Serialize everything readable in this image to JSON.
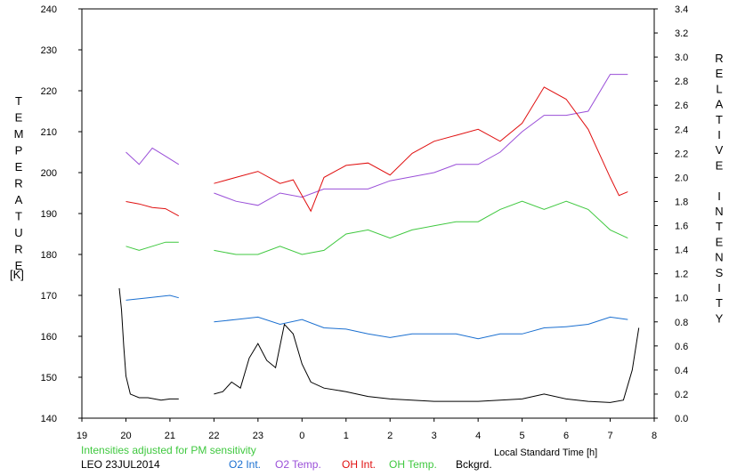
{
  "chart_data": {
    "type": "line",
    "left_axis_label": "TEMPERATURE",
    "left_axis_unit": "[K]",
    "right_axis_label": "RELATIVE INTENSITY",
    "x_axis_label": "Local Standard Time [h]",
    "note": "Intensities adjusted for PM sensitivity",
    "station_date": "LEO 23JUL2014",
    "x_ticks": [
      "19",
      "20",
      "21",
      "22",
      "23",
      "0",
      "1",
      "2",
      "3",
      "4",
      "5",
      "6",
      "7",
      "8"
    ],
    "x_range": [
      19,
      32
    ],
    "y_left_range": [
      140,
      240
    ],
    "y_left_ticks": [
      "140",
      "150",
      "160",
      "170",
      "180",
      "190",
      "200",
      "210",
      "220",
      "230",
      "240"
    ],
    "y_right_range": [
      0.0,
      3.4
    ],
    "y_right_ticks": [
      "0.0",
      "0.2",
      "0.4",
      "0.6",
      "0.8",
      "1.0",
      "1.2",
      "1.4",
      "1.6",
      "1.8",
      "2.0",
      "2.2",
      "2.4",
      "2.6",
      "2.8",
      "3.0",
      "3.2",
      "3.4"
    ],
    "grid": false,
    "legend_position": "bottom",
    "series": [
      {
        "name": "O2 Int.",
        "axis": "right",
        "color": "#1a6fd0",
        "segments": [
          {
            "x": [
              20.0,
              20.5,
              21.0,
              21.2
            ],
            "y": [
              0.98,
              1.0,
              1.02,
              1.0
            ]
          },
          {
            "x": [
              22.0,
              22.5,
              23.0,
              23.5,
              24.0,
              24.5,
              25.0,
              25.5,
              26.0,
              26.5,
              27.0,
              27.5,
              28.0,
              28.5,
              29.0,
              29.5,
              30.0,
              30.5,
              31.0,
              31.4
            ],
            "y": [
              0.8,
              0.82,
              0.84,
              0.78,
              0.82,
              0.75,
              0.74,
              0.7,
              0.67,
              0.7,
              0.7,
              0.7,
              0.66,
              0.7,
              0.7,
              0.75,
              0.76,
              0.78,
              0.84,
              0.82
            ]
          }
        ]
      },
      {
        "name": "O2 Temp.",
        "axis": "left",
        "color": "#9a4fd8",
        "segments": [
          {
            "x": [
              20.0,
              20.3,
              20.6,
              20.9,
              21.2
            ],
            "y": [
              205,
              202,
              206,
              204,
              202
            ]
          },
          {
            "x": [
              22.0,
              22.5,
              23.0,
              23.5,
              24.0,
              24.5,
              25.0,
              25.5,
              26.0,
              26.5,
              27.0,
              27.5,
              28.0,
              28.5,
              29.0,
              29.5,
              30.0,
              30.5,
              31.0,
              31.4
            ],
            "y": [
              195,
              193,
              192,
              195,
              194,
              196,
              196,
              196,
              198,
              199,
              200,
              202,
              202,
              205,
              210,
              214,
              214,
              215,
              224,
              224
            ]
          }
        ]
      },
      {
        "name": "OH Int.",
        "axis": "right",
        "color": "#e01010",
        "segments": [
          {
            "x": [
              20.0,
              20.3,
              20.6,
              20.9,
              21.2
            ],
            "y": [
              1.8,
              1.78,
              1.75,
              1.74,
              1.68
            ]
          },
          {
            "x": [
              22.0,
              22.5,
              23.0,
              23.5,
              23.8,
              24.0,
              24.2,
              24.5,
              25.0,
              25.5,
              26.0,
              26.5,
              27.0,
              27.5,
              28.0,
              28.5,
              29.0,
              29.5,
              30.0,
              30.5,
              31.0,
              31.2,
              31.4
            ],
            "y": [
              1.95,
              2.0,
              2.05,
              1.95,
              1.98,
              1.85,
              1.72,
              2.0,
              2.1,
              2.12,
              2.02,
              2.2,
              2.3,
              2.35,
              2.4,
              2.3,
              2.45,
              2.75,
              2.65,
              2.4,
              2.0,
              1.85,
              1.88
            ]
          }
        ]
      },
      {
        "name": "OH Temp.",
        "axis": "left",
        "color": "#3fc83f",
        "segments": [
          {
            "x": [
              20.0,
              20.3,
              20.6,
              20.9,
              21.2
            ],
            "y": [
              182,
              181,
              182,
              183,
              183
            ]
          },
          {
            "x": [
              22.0,
              22.5,
              23.0,
              23.5,
              24.0,
              24.5,
              25.0,
              25.5,
              26.0,
              26.5,
              27.0,
              27.5,
              28.0,
              28.5,
              29.0,
              29.5,
              30.0,
              30.5,
              31.0,
              31.4
            ],
            "y": [
              181,
              180,
              180,
              182,
              180,
              181,
              185,
              186,
              184,
              186,
              187,
              188,
              188,
              191,
              193,
              191,
              193,
              191,
              186,
              184
            ]
          }
        ]
      },
      {
        "name": "Bckgrd.",
        "axis": "right",
        "color": "#000000",
        "segments": [
          {
            "x": [
              19.85,
              19.9,
              19.95,
              20.0,
              20.1,
              20.3,
              20.5,
              20.8,
              21.0,
              21.2
            ],
            "y": [
              1.08,
              0.9,
              0.6,
              0.35,
              0.2,
              0.17,
              0.17,
              0.15,
              0.16,
              0.16
            ]
          },
          {
            "x": [
              22.0,
              22.2,
              22.4,
              22.6,
              22.8,
              23.0,
              23.2,
              23.4,
              23.6,
              23.8,
              24.0,
              24.2,
              24.5,
              25.0,
              25.5,
              26.0,
              27.0,
              28.0,
              29.0,
              29.5,
              30.0,
              30.5,
              31.0,
              31.3,
              31.5,
              31.65
            ],
            "y": [
              0.2,
              0.22,
              0.3,
              0.25,
              0.5,
              0.62,
              0.48,
              0.42,
              0.78,
              0.7,
              0.45,
              0.3,
              0.25,
              0.22,
              0.18,
              0.16,
              0.14,
              0.14,
              0.16,
              0.2,
              0.16,
              0.14,
              0.13,
              0.15,
              0.4,
              0.75
            ]
          }
        ]
      }
    ]
  }
}
